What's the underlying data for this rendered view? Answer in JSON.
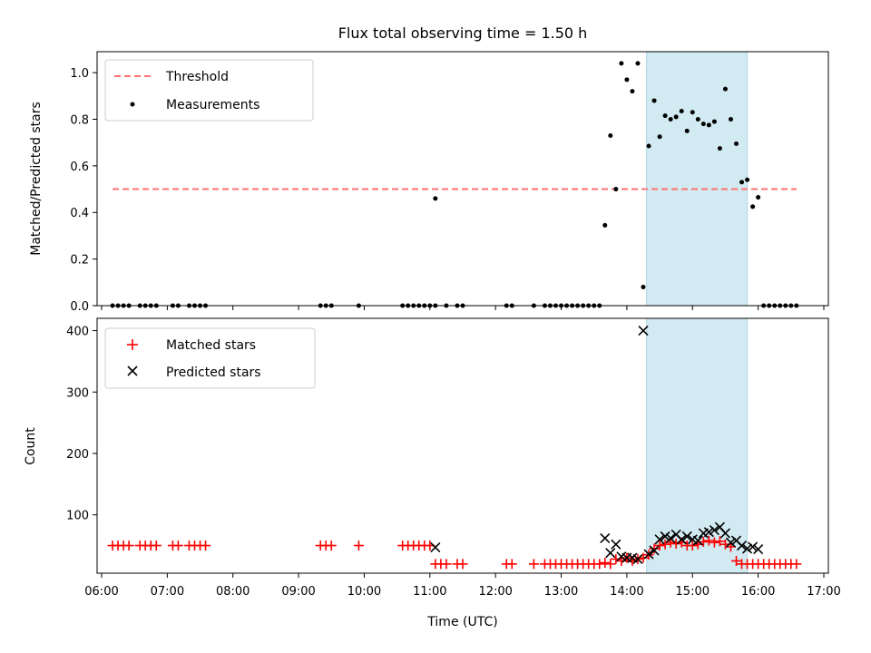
{
  "chart_data": [
    {
      "type": "scatter",
      "title": "Flux total observing time = 1.50 h",
      "xlabel": "",
      "ylabel": "Matched/Predicted stars",
      "xlim": [
        "06:00",
        "17:00"
      ],
      "ylim": [
        0,
        1.09
      ],
      "yticks": [
        "0.0",
        "0.2",
        "0.4",
        "0.6",
        "0.8",
        "1.0"
      ],
      "legend_position": "top-left",
      "shaded_region": {
        "x": [
          "14:18",
          "15:50"
        ],
        "color": "#add8e6"
      },
      "series": [
        {
          "name": "Threshold",
          "style": "dashed-line",
          "color": "#ff7070",
          "x": [
            "06:10",
            "16:35"
          ],
          "y": [
            0.5,
            0.5
          ]
        },
        {
          "name": "Measurements",
          "style": "dot",
          "color": "#000000",
          "x": [
            "06:10",
            "06:15",
            "06:20",
            "06:25",
            "06:35",
            "06:40",
            "06:45",
            "06:50",
            "07:05",
            "07:10",
            "07:20",
            "07:25",
            "07:30",
            "07:35",
            "09:20",
            "09:25",
            "09:30",
            "09:55",
            "10:35",
            "10:40",
            "10:45",
            "10:50",
            "10:55",
            "11:00",
            "11:05",
            "11:15",
            "11:25",
            "11:30",
            "12:10",
            "12:15",
            "12:35",
            "12:45",
            "12:50",
            "12:55",
            "13:00",
            "13:05",
            "13:10",
            "13:15",
            "13:20",
            "13:25",
            "13:30",
            "13:35",
            "13:40",
            "13:45",
            "13:50",
            "13:55",
            "14:00",
            "14:05",
            "14:10",
            "14:15",
            "14:20",
            "14:25",
            "14:30",
            "14:35",
            "14:40",
            "14:45",
            "14:50",
            "14:55",
            "15:00",
            "15:05",
            "15:10",
            "15:15",
            "15:20",
            "15:25",
            "15:30",
            "15:35",
            "15:40",
            "15:45",
            "15:50",
            "15:55",
            "16:00",
            "16:05",
            "16:10",
            "16:15",
            "16:20",
            "16:25",
            "16:30",
            "16:35",
            "11:05"
          ],
          "y": [
            0,
            0,
            0,
            0,
            0,
            0,
            0,
            0,
            0,
            0,
            0,
            0,
            0,
            0,
            0,
            0,
            0,
            0,
            0,
            0,
            0,
            0,
            0,
            0,
            0,
            0,
            0,
            0,
            0,
            0,
            0,
            0,
            0,
            0,
            0,
            0,
            0,
            0,
            0,
            0,
            0,
            0,
            0.345,
            0.73,
            0.5,
            1.04,
            0.97,
            0.92,
            1.04,
            0.08,
            0.685,
            0.88,
            0.725,
            0.815,
            0.8,
            0.81,
            0.835,
            0.75,
            0.83,
            0.8,
            0.78,
            0.775,
            0.79,
            0.675,
            0.93,
            0.8,
            0.695,
            0.53,
            0.54,
            0.425,
            0.465,
            0,
            0,
            0,
            0,
            0,
            0,
            0,
            0.46
          ]
        }
      ]
    },
    {
      "type": "scatter",
      "title": "",
      "xlabel": "Time (UTC)",
      "ylabel": "Count",
      "xlim": [
        "06:00",
        "17:00"
      ],
      "ylim": [
        5,
        420
      ],
      "xticks": [
        "06:00",
        "07:00",
        "08:00",
        "09:00",
        "10:00",
        "11:00",
        "12:00",
        "13:00",
        "14:00",
        "15:00",
        "16:00",
        "17:00"
      ],
      "yticks": [
        "100",
        "200",
        "300",
        "400"
      ],
      "legend_position": "top-left",
      "shaded_region": {
        "x": [
          "14:18",
          "15:50"
        ],
        "color": "#add8e6"
      },
      "series": [
        {
          "name": "Matched stars",
          "style": "plus",
          "color": "#ff0000",
          "x": [
            "06:10",
            "06:15",
            "06:20",
            "06:25",
            "06:35",
            "06:40",
            "06:45",
            "06:50",
            "07:05",
            "07:10",
            "07:20",
            "07:25",
            "07:30",
            "07:35",
            "09:20",
            "09:25",
            "09:30",
            "09:55",
            "10:35",
            "10:40",
            "10:45",
            "10:50",
            "10:55",
            "11:00",
            "11:05",
            "11:10",
            "11:15",
            "11:25",
            "11:30",
            "12:10",
            "12:15",
            "12:35",
            "12:45",
            "12:50",
            "12:55",
            "13:00",
            "13:05",
            "13:10",
            "13:15",
            "13:20",
            "13:25",
            "13:30",
            "13:35",
            "13:40",
            "13:45",
            "13:50",
            "13:55",
            "14:00",
            "14:05",
            "14:10",
            "14:15",
            "14:20",
            "14:25",
            "14:30",
            "14:35",
            "14:40",
            "14:45",
            "14:50",
            "14:55",
            "15:00",
            "15:05",
            "15:10",
            "15:15",
            "15:20",
            "15:25",
            "15:30",
            "15:35",
            "15:40",
            "15:45",
            "15:50",
            "15:55",
            "16:00",
            "16:05",
            "16:10",
            "16:15",
            "16:20",
            "16:25",
            "16:30",
            "16:35"
          ],
          "y": [
            50,
            50,
            50,
            50,
            50,
            50,
            50,
            50,
            50,
            50,
            50,
            50,
            50,
            50,
            50,
            50,
            50,
            50,
            50,
            50,
            50,
            50,
            50,
            50,
            20,
            20,
            20,
            20,
            20,
            20,
            20,
            20,
            20,
            20,
            20,
            20,
            20,
            20,
            20,
            20,
            20,
            20,
            20,
            22,
            20,
            28,
            25,
            30,
            25,
            28,
            30,
            35,
            45,
            50,
            52,
            55,
            53,
            55,
            50,
            50,
            52,
            56,
            58,
            55,
            57,
            52,
            48,
            25,
            20,
            20,
            20,
            20,
            20,
            20,
            20,
            20,
            20,
            20,
            20
          ]
        },
        {
          "name": "Predicted stars",
          "style": "x",
          "color": "#000000",
          "x": [
            "11:05",
            "13:40",
            "13:45",
            "13:50",
            "13:55",
            "14:00",
            "14:05",
            "14:10",
            "14:15",
            "14:20",
            "14:25",
            "14:30",
            "14:35",
            "14:40",
            "14:45",
            "14:50",
            "14:55",
            "15:00",
            "15:05",
            "15:10",
            "15:15",
            "15:20",
            "15:25",
            "15:30",
            "15:35",
            "15:40",
            "15:45",
            "15:50",
            "15:55",
            "16:00"
          ],
          "y": [
            47,
            62,
            38,
            52,
            32,
            30,
            30,
            28,
            400,
            36,
            42,
            60,
            65,
            62,
            68,
            60,
            65,
            60,
            58,
            70,
            72,
            75,
            80,
            70,
            55,
            58,
            50,
            45,
            48,
            44
          ]
        }
      ]
    }
  ]
}
